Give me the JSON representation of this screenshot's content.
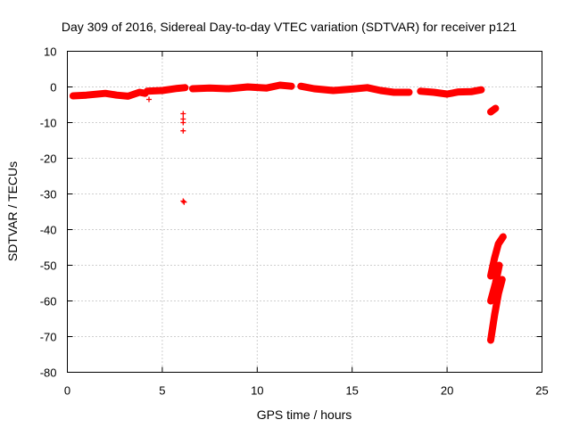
{
  "chart_data": {
    "type": "scatter",
    "title": "Day 309 of 2016, Sidereal Day-to-day VTEC variation (SDTVAR) for receiver p121",
    "xlabel": "GPS time / hours",
    "ylabel": "SDTVAR / TECUs",
    "xlim": [
      0,
      25
    ],
    "ylim": [
      -80,
      10
    ],
    "xticks": [
      0,
      5,
      10,
      15,
      20,
      25
    ],
    "yticks": [
      10,
      0,
      -10,
      -20,
      -30,
      -40,
      -50,
      -60,
      -70,
      -80
    ],
    "grid": true,
    "marker": "+",
    "color": "#ff0000",
    "series": [
      {
        "name": "SDTVAR",
        "segments": [
          {
            "x": [
              0.3,
              1.0,
              2.0,
              2.6,
              3.2,
              3.8,
              4.1
            ],
            "y": [
              -2.5,
              -2.3,
              -1.8,
              -2.3,
              -2.6,
              -1.5,
              -1.8
            ]
          },
          {
            "x": [
              4.2,
              5.0,
              5.8,
              6.2
            ],
            "y": [
              -1.2,
              -1.0,
              -0.4,
              -0.2
            ]
          },
          {
            "x": [
              6.6,
              7.5,
              8.5,
              9.5,
              10.5,
              11.2,
              11.8
            ],
            "y": [
              -0.5,
              -0.3,
              -0.5,
              0.0,
              -0.3,
              0.5,
              0.2
            ]
          },
          {
            "x": [
              12.3,
              13.0,
              14.0,
              15.0,
              15.8,
              16.5,
              17.2,
              18.0
            ],
            "y": [
              0.2,
              -0.5,
              -1.0,
              -0.6,
              -0.2,
              -1.0,
              -1.5,
              -1.5
            ]
          },
          {
            "x": [
              18.6,
              19.3,
              20.0,
              20.6,
              21.3,
              21.8
            ],
            "y": [
              -1.2,
              -1.5,
              -2.0,
              -1.4,
              -1.3,
              -0.8
            ]
          },
          {
            "x": [
              22.3,
              22.55
            ],
            "y": [
              -7.0,
              -6.0
            ]
          },
          {
            "x": [
              22.3,
              22.5,
              22.7,
              22.95
            ],
            "y": [
              -53.0,
              -48.0,
              -44.0,
              -42.0
            ]
          },
          {
            "x": [
              22.3,
              22.55,
              22.75
            ],
            "y": [
              -60.0,
              -55.0,
              -50.0
            ]
          },
          {
            "x": [
              22.3,
              22.5,
              22.7,
              22.9
            ],
            "y": [
              -71.0,
              -64.0,
              -58.0,
              -54.0
            ]
          }
        ],
        "points": [
          {
            "x": 4.3,
            "y": -3.5
          },
          {
            "x": 6.1,
            "y": -7.5
          },
          {
            "x": 6.1,
            "y": -9.0
          },
          {
            "x": 6.1,
            "y": -10.0
          },
          {
            "x": 6.1,
            "y": -12.3
          },
          {
            "x": 6.1,
            "y": -32.0
          },
          {
            "x": 6.15,
            "y": -32.3
          }
        ]
      }
    ]
  }
}
